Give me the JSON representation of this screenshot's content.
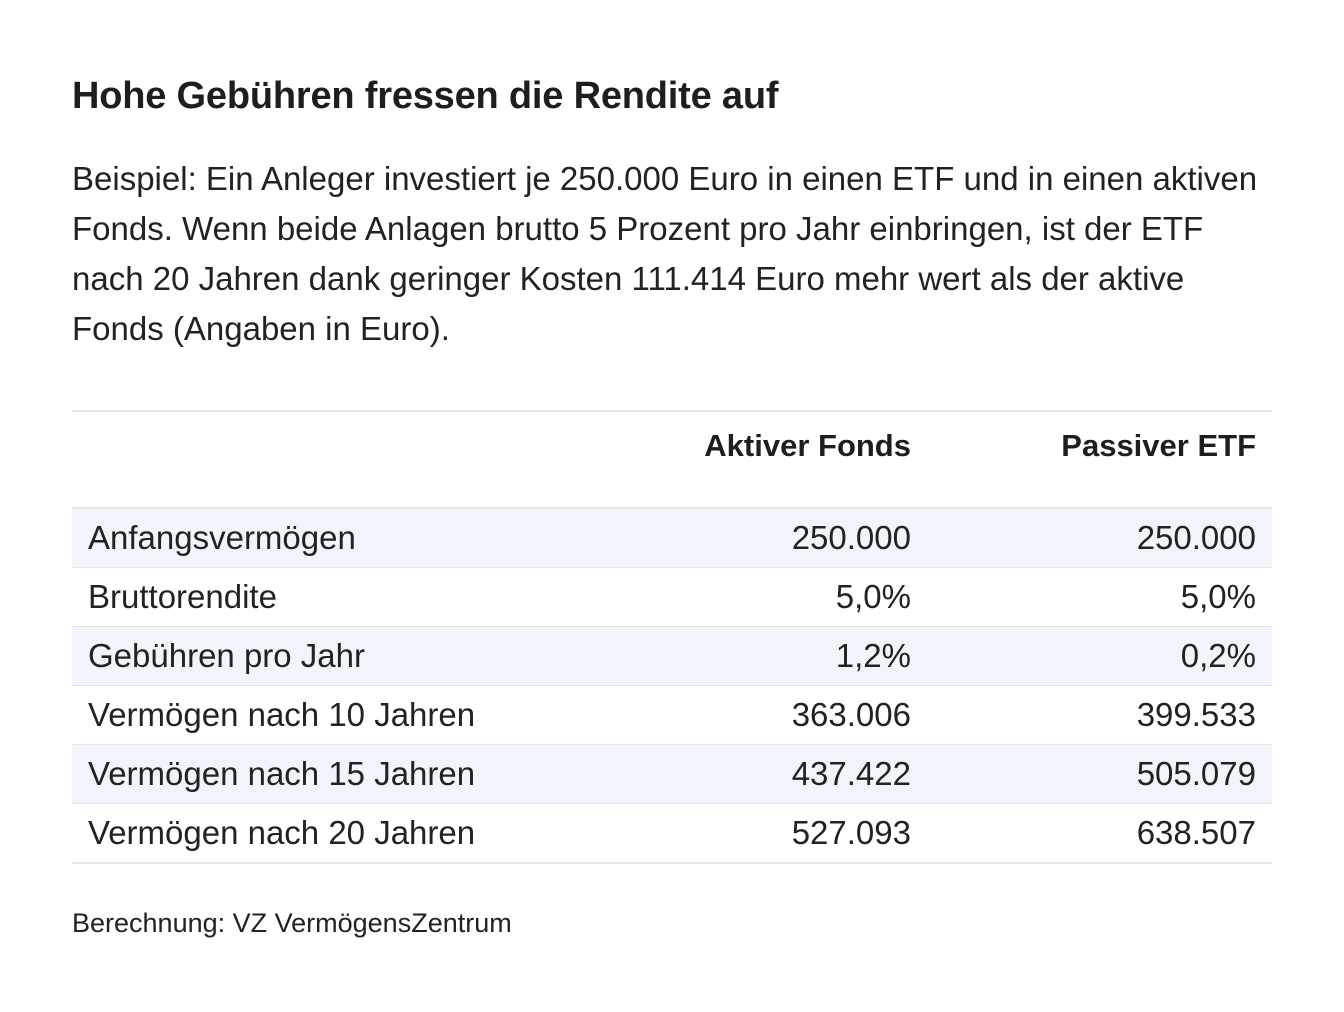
{
  "title": "Hohe Gebühren fressen die Rendite auf",
  "subtitle": "Beispiel: Ein Anleger investiert je 250.000 Euro in einen ETF und in einen aktiven Fonds. Wenn beide Anlagen brutto 5 Prozent pro Jahr einbringen, ist der ETF nach 20 Jahren dank geringer Kosten 111.414 Euro mehr wert als der aktive Fonds (Angaben in Euro).",
  "source": "Berechnung: VZ VermögensZentrum",
  "colors": {
    "stripe": "#f1f5fb",
    "rule": "#e4e4e4",
    "text": "#222222"
  },
  "chart_data": {
    "type": "table",
    "columns": [
      "",
      "Aktiver Fonds",
      "Passiver ETF"
    ],
    "rows": [
      [
        "Anfangsvermögen",
        "250.000",
        "250.000"
      ],
      [
        "Bruttorendite",
        "5,0%",
        "5,0%"
      ],
      [
        "Gebühren pro Jahr",
        "1,2%",
        "0,2%"
      ],
      [
        "Vermögen nach 10 Jahren",
        "363.006",
        "399.533"
      ],
      [
        "Vermögen nach 15 Jahren",
        "437.422",
        "505.079"
      ],
      [
        "Vermögen nach 20 Jahren",
        "527.093",
        "638.507"
      ]
    ]
  }
}
